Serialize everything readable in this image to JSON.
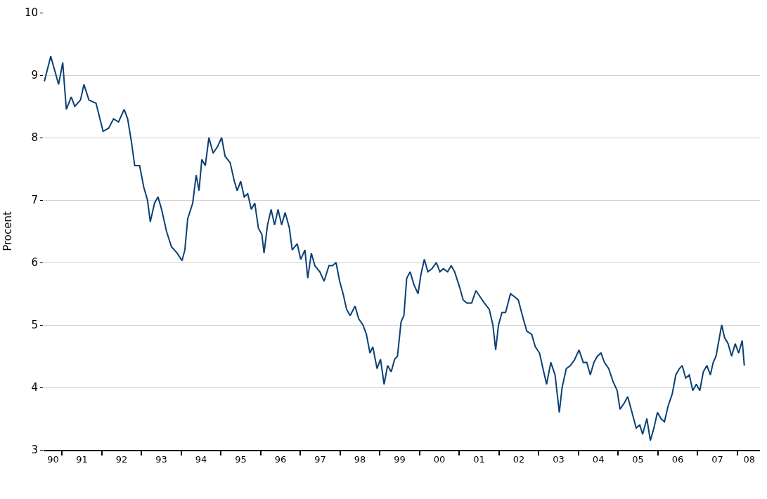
{
  "chart_data": {
    "type": "line",
    "ylabel": "Procent",
    "x": [
      "1990-07-22",
      "1990-09-19",
      "1990-11-30",
      "1991-01-07",
      "1991-02-09",
      "1991-03-26",
      "1991-04-28",
      "1991-06-19",
      "1991-07-21",
      "1991-09-05",
      "1991-11-09",
      "1992-01-13",
      "1992-03-04",
      "1992-04-18",
      "1992-06-03",
      "1992-07-25",
      "1992-08-26",
      "1992-09-28",
      "1992-10-30",
      "1992-12-14",
      "1993-01-22",
      "1993-02-24",
      "1993-03-22",
      "1993-04-30",
      "1993-06-01",
      "1993-07-04",
      "1993-08-18",
      "1993-10-03",
      "1993-11-24",
      "1994-01-08",
      "1994-02-03",
      "1994-03-01",
      "1994-04-16",
      "1994-05-18",
      "1994-06-13",
      "1994-07-09",
      "1994-08-10",
      "1994-09-12",
      "1994-10-21",
      "1994-11-29",
      "1995-01-07",
      "1995-02-08",
      "1995-03-26",
      "1995-05-04",
      "1995-05-30",
      "1995-07-01",
      "1995-08-03",
      "1995-09-04",
      "1995-10-07",
      "1995-11-08",
      "1995-12-11",
      "1996-01-12",
      "1996-02-01",
      "1996-03-04",
      "1996-04-06",
      "1996-05-08",
      "1996-06-09",
      "1996-07-12",
      "1996-08-13",
      "1996-09-21",
      "1996-10-17",
      "1996-12-02",
      "1997-01-03",
      "1997-02-11",
      "1997-03-09",
      "1997-04-11",
      "1997-05-13",
      "1997-06-28",
      "1997-08-06",
      "1997-09-20",
      "1997-10-23",
      "1997-11-24",
      "1997-12-27",
      "1998-01-28",
      "1998-03-01",
      "1998-04-03",
      "1998-05-18",
      "1998-06-20",
      "1998-07-29",
      "1998-08-30",
      "1998-10-02",
      "1998-10-28",
      "1998-12-06",
      "1999-01-07",
      "1999-02-09",
      "1999-03-13",
      "1999-04-15",
      "1999-05-17",
      "1999-06-12",
      "1999-07-15",
      "1999-08-10",
      "1999-09-05",
      "1999-10-07",
      "1999-11-09",
      "1999-12-18",
      "2000-01-13",
      "2000-02-14",
      "2000-03-17",
      "2000-04-25",
      "2000-06-03",
      "2000-07-06",
      "2000-08-07",
      "2000-09-15",
      "2000-10-18",
      "2000-11-19",
      "2001-01-04",
      "2001-02-05",
      "2001-03-10",
      "2001-04-24",
      "2001-06-02",
      "2001-07-11",
      "2001-08-19",
      "2001-10-03",
      "2001-11-05",
      "2001-12-01",
      "2001-12-27",
      "2002-01-28",
      "2002-03-02",
      "2002-04-16",
      "2002-05-25",
      "2002-06-27",
      "2002-08-11",
      "2002-09-13",
      "2002-10-28",
      "2002-11-30",
      "2003-01-08",
      "2003-02-09",
      "2003-03-14",
      "2003-04-22",
      "2003-05-31",
      "2003-07-09",
      "2003-08-04",
      "2003-09-11",
      "2003-10-20",
      "2003-11-28",
      "2004-01-06",
      "2004-02-14",
      "2004-03-18",
      "2004-04-19",
      "2004-05-22",
      "2004-06-23",
      "2004-07-26",
      "2004-08-27",
      "2004-10-05",
      "2004-11-13",
      "2004-12-22",
      "2005-01-17",
      "2005-02-25",
      "2005-03-29",
      "2005-05-07",
      "2005-06-15",
      "2005-07-18",
      "2005-08-13",
      "2005-09-21",
      "2005-10-23",
      "2005-11-25",
      "2005-12-27",
      "2006-01-29",
      "2006-03-02",
      "2006-04-04",
      "2006-05-13",
      "2006-06-14",
      "2006-07-17",
      "2006-08-12",
      "2006-09-13",
      "2006-10-16",
      "2006-11-17",
      "2006-12-20",
      "2007-01-21",
      "2007-02-22",
      "2007-03-27",
      "2007-04-28",
      "2007-05-24",
      "2007-06-19",
      "2007-07-15",
      "2007-08-10",
      "2007-09-05",
      "2007-10-08",
      "2007-11-09",
      "2007-12-12",
      "2008-01-13",
      "2008-02-15",
      "2008-03-05"
    ],
    "series": [
      {
        "color": "#0b4074",
        "values": [
          8.9,
          9.3,
          8.85,
          9.2,
          8.45,
          8.65,
          8.5,
          8.6,
          8.85,
          8.6,
          8.55,
          8.1,
          8.15,
          8.3,
          8.25,
          8.45,
          8.3,
          7.95,
          7.55,
          7.55,
          7.2,
          7.0,
          6.65,
          6.95,
          7.05,
          6.85,
          6.5,
          6.25,
          6.15,
          6.03,
          6.2,
          6.7,
          6.95,
          7.4,
          7.15,
          7.65,
          7.55,
          8.0,
          7.75,
          7.85,
          8.0,
          7.7,
          7.6,
          7.3,
          7.15,
          7.3,
          7.05,
          7.1,
          6.85,
          6.95,
          6.55,
          6.45,
          6.15,
          6.6,
          6.85,
          6.6,
          6.85,
          6.6,
          6.8,
          6.55,
          6.2,
          6.3,
          6.05,
          6.2,
          5.75,
          6.15,
          5.95,
          5.85,
          5.7,
          5.95,
          5.95,
          6.0,
          5.7,
          5.5,
          5.25,
          5.15,
          5.3,
          5.1,
          5.0,
          4.85,
          4.55,
          4.65,
          4.3,
          4.45,
          4.05,
          4.35,
          4.25,
          4.45,
          4.5,
          5.05,
          5.15,
          5.75,
          5.85,
          5.65,
          5.5,
          5.8,
          6.05,
          5.85,
          5.9,
          6.0,
          5.85,
          5.9,
          5.85,
          5.95,
          5.85,
          5.6,
          5.4,
          5.35,
          5.35,
          5.55,
          5.45,
          5.35,
          5.25,
          5.0,
          4.6,
          5.0,
          5.2,
          5.2,
          5.5,
          5.45,
          5.4,
          5.1,
          4.9,
          4.85,
          4.65,
          4.55,
          4.3,
          4.05,
          4.4,
          4.2,
          3.6,
          4.0,
          4.3,
          4.35,
          4.45,
          4.6,
          4.4,
          4.4,
          4.2,
          4.4,
          4.5,
          4.55,
          4.4,
          4.3,
          4.1,
          3.95,
          3.65,
          3.75,
          3.85,
          3.6,
          3.35,
          3.4,
          3.25,
          3.5,
          3.15,
          3.35,
          3.6,
          3.5,
          3.45,
          3.7,
          3.9,
          4.2,
          4.3,
          4.35,
          4.15,
          4.2,
          3.95,
          4.05,
          3.95,
          4.25,
          4.35,
          4.2,
          4.4,
          4.5,
          4.75,
          5.0,
          4.8,
          4.7,
          4.5,
          4.7,
          4.55,
          4.75,
          4.35
        ]
      }
    ],
    "xlim": [
      "1990-07-15",
      "2008-07-27"
    ],
    "xticks": [
      {
        "value": "1990-10-10",
        "label": "90"
      },
      {
        "value": "1991-07-02",
        "label": "91"
      },
      {
        "value": "1992-07-02",
        "label": "92"
      },
      {
        "value": "1993-07-02",
        "label": "93"
      },
      {
        "value": "1994-07-02",
        "label": "94"
      },
      {
        "value": "1995-07-02",
        "label": "95"
      },
      {
        "value": "1996-07-02",
        "label": "96"
      },
      {
        "value": "1997-07-02",
        "label": "97"
      },
      {
        "value": "1998-07-02",
        "label": "98"
      },
      {
        "value": "1999-07-02",
        "label": "99"
      },
      {
        "value": "2000-07-02",
        "label": "00"
      },
      {
        "value": "2001-07-02",
        "label": "01"
      },
      {
        "value": "2002-07-02",
        "label": "02"
      },
      {
        "value": "2003-07-02",
        "label": "03"
      },
      {
        "value": "2004-07-02",
        "label": "04"
      },
      {
        "value": "2005-07-02",
        "label": "05"
      },
      {
        "value": "2006-07-02",
        "label": "06"
      },
      {
        "value": "2007-07-02",
        "label": "07"
      },
      {
        "value": "2008-04-20",
        "label": "08"
      },
      {
        "value": "1991-01-01",
        "label": null
      },
      {
        "value": "1992-01-01",
        "label": null
      },
      {
        "value": "1993-01-01",
        "label": null
      },
      {
        "value": "1994-01-01",
        "label": null
      },
      {
        "value": "1995-01-01",
        "label": null
      },
      {
        "value": "1996-01-01",
        "label": null
      },
      {
        "value": "1997-01-01",
        "label": null
      },
      {
        "value": "1998-01-01",
        "label": null
      },
      {
        "value": "1999-01-01",
        "label": null
      },
      {
        "value": "2000-01-01",
        "label": null
      },
      {
        "value": "2001-01-01",
        "label": null
      },
      {
        "value": "2002-01-01",
        "label": null
      },
      {
        "value": "2003-01-01",
        "label": null
      },
      {
        "value": "2004-01-01",
        "label": null
      },
      {
        "value": "2005-01-01",
        "label": null
      },
      {
        "value": "2006-01-01",
        "label": null
      },
      {
        "value": "2007-01-01",
        "label": null
      },
      {
        "value": "2008-01-01",
        "label": null
      }
    ],
    "ylim": [
      3,
      10
    ],
    "yticks": [
      3,
      4,
      5,
      6,
      7,
      8,
      9,
      10
    ],
    "grid": "y",
    "marker": "none",
    "line_style": "solid"
  }
}
